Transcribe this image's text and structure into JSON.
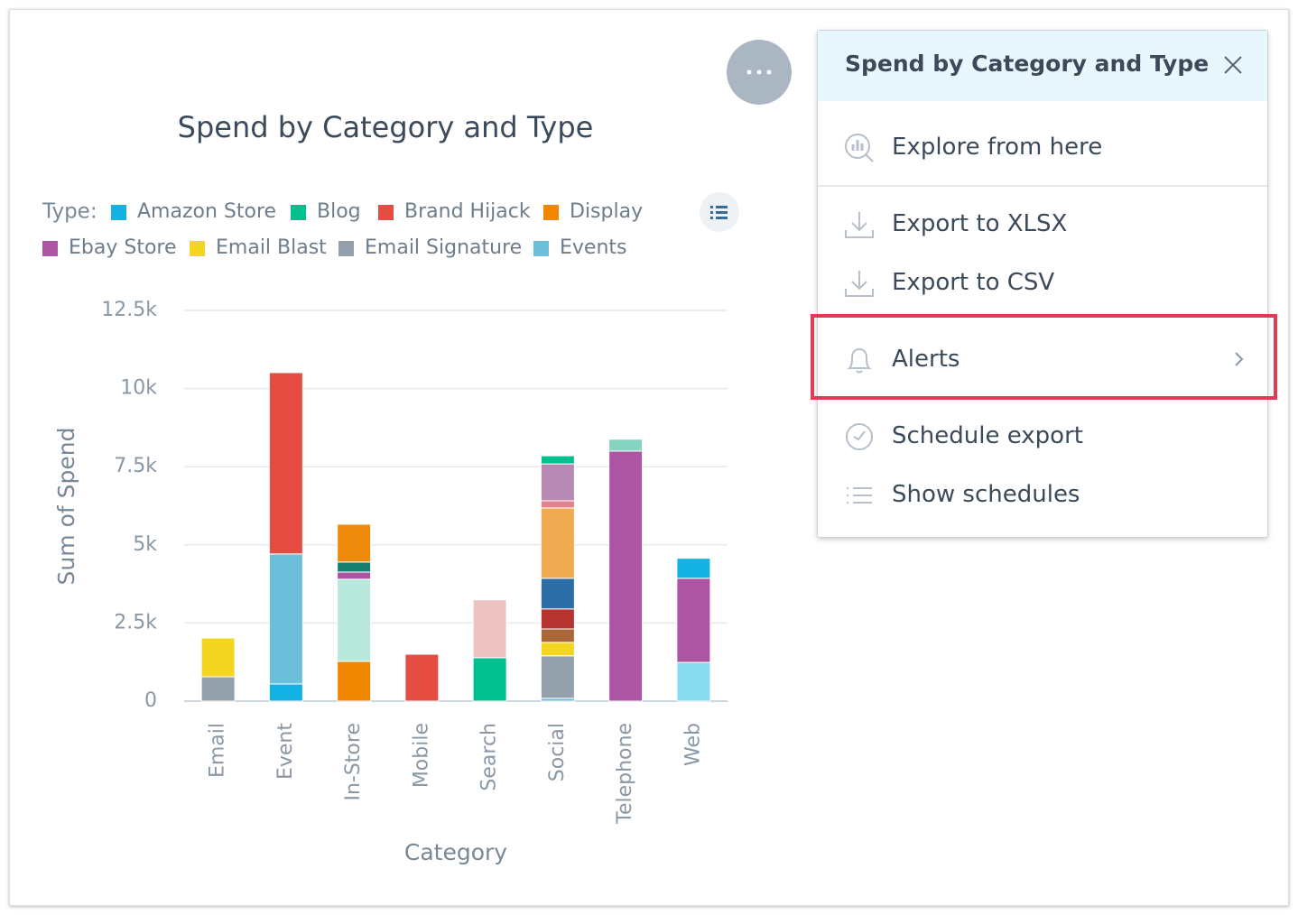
{
  "chart_data": {
    "type": "stacked-bar",
    "title": "Spend by Category and Type",
    "legend_title": "Type:",
    "x_label": "Category",
    "y_label": "Sum of Spend",
    "categories": [
      "Email",
      "Event",
      "In-Store",
      "Mobile",
      "Search",
      "Social",
      "Telephone",
      "Web"
    ],
    "ylim": [
      0,
      12500
    ],
    "yticks": [
      0,
      {
        "value": 2500,
        "label": "2.5k"
      },
      {
        "value": 5000,
        "label": "5k"
      },
      {
        "value": 7500,
        "label": "7.5k"
      },
      {
        "value": 10000,
        "label": "10k"
      },
      {
        "value": 12500,
        "label": "12.5k"
      }
    ],
    "grid": true,
    "series": [
      {
        "name": "Amazon Store",
        "color": "#14b2e2",
        "values": [
          null,
          550,
          null,
          null,
          null,
          null,
          null,
          640
        ]
      },
      {
        "name": "Blog",
        "color": "#00c18d",
        "values": [
          null,
          null,
          null,
          null,
          1390,
          260,
          null,
          null
        ]
      },
      {
        "name": "Brand Hijack",
        "color": "#e54d42",
        "values": [
          null,
          5800,
          null,
          1500,
          null,
          null,
          null,
          null
        ]
      },
      {
        "name": "Display",
        "color": "#f18600",
        "values": [
          null,
          null,
          1270,
          null,
          null,
          null,
          null,
          null
        ]
      },
      {
        "name": "Ebay Store",
        "color": "#ab55a3",
        "values": [
          null,
          null,
          230,
          null,
          null,
          null,
          8000,
          2690
        ]
      },
      {
        "name": "Email Blast",
        "color": "#f4d521",
        "values": [
          1240,
          null,
          null,
          null,
          null,
          430,
          null,
          null
        ]
      },
      {
        "name": "Email Signature",
        "color": "#94a1ad",
        "values": [
          780,
          null,
          null,
          null,
          null,
          1360,
          null,
          null
        ]
      },
      {
        "name": "Events",
        "color": "#6bbfd8",
        "values": [
          null,
          4160,
          null,
          null,
          null,
          90,
          null,
          null
        ]
      },
      {
        "name": null,
        "color": "#b9e8dc",
        "values": [
          null,
          null,
          2630,
          null,
          null,
          null,
          null,
          null
        ]
      },
      {
        "name": null,
        "color": "#168071",
        "values": [
          null,
          null,
          320,
          null,
          null,
          null,
          null,
          null
        ]
      },
      {
        "name": null,
        "color": "#ef8b0c",
        "values": [
          null,
          null,
          1210,
          null,
          null,
          null,
          null,
          null
        ]
      },
      {
        "name": null,
        "color": "#ecc3c0",
        "values": [
          null,
          null,
          null,
          null,
          1850,
          null,
          null,
          null
        ]
      },
      {
        "name": null,
        "color": "#a9673a",
        "values": [
          null,
          null,
          null,
          null,
          null,
          430,
          null,
          null
        ]
      },
      {
        "name": null,
        "color": "#b63330",
        "values": [
          null,
          null,
          null,
          null,
          null,
          640,
          null,
          null
        ]
      },
      {
        "name": null,
        "color": "#2d6ea6",
        "values": [
          null,
          null,
          null,
          null,
          null,
          980,
          null,
          null
        ]
      },
      {
        "name": null,
        "color": "#f0ab52",
        "values": [
          null,
          null,
          null,
          null,
          null,
          2250,
          null,
          null
        ]
      },
      {
        "name": null,
        "color": "#e0848e",
        "values": [
          null,
          null,
          null,
          null,
          null,
          230,
          null,
          null
        ]
      },
      {
        "name": null,
        "color": "#b98ab3",
        "values": [
          null,
          null,
          null,
          null,
          null,
          1180,
          null,
          null
        ]
      },
      {
        "name": null,
        "color": "#84d4c0",
        "values": [
          null,
          null,
          null,
          null,
          null,
          null,
          380,
          null
        ]
      },
      {
        "name": null,
        "color": "#89dcef",
        "values": [
          null,
          null,
          null,
          null,
          null,
          null,
          null,
          1240
        ]
      }
    ]
  },
  "menu": {
    "title": "Spend by Category and Type",
    "items": [
      "Explore from here",
      "Export to XLSX",
      "Export to CSV",
      "Alerts",
      "Schedule export",
      "Show schedules"
    ]
  }
}
